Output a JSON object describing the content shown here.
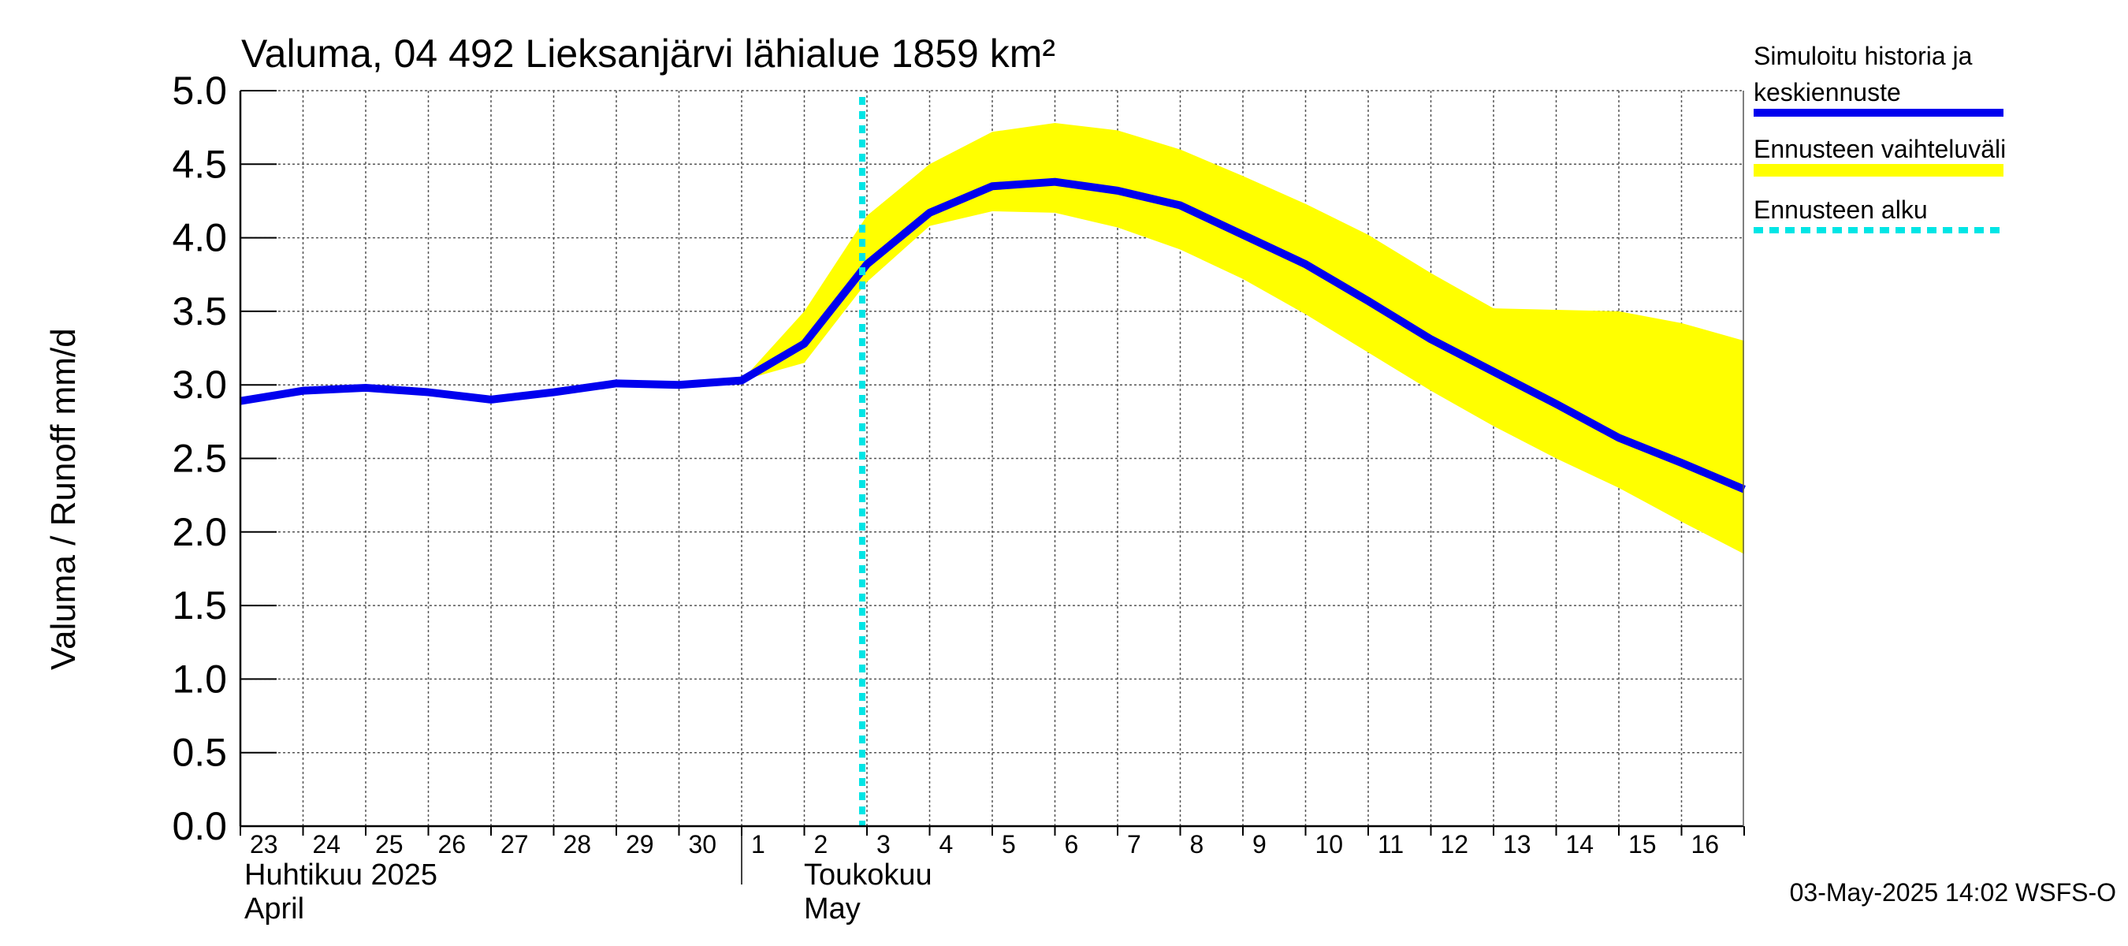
{
  "chart_data": {
    "type": "line",
    "title": "Valuma, 04 492 Lieksanjärvi lähialue 1859 km²",
    "ylabel": "Valuma / Runoff    mm/d",
    "ylim": [
      0,
      5
    ],
    "yticks": [
      "0.0",
      "0.5",
      "1.0",
      "1.5",
      "2.0",
      "2.5",
      "3.0",
      "3.5",
      "4.0",
      "4.5",
      "5.0"
    ],
    "x_tick_labels": [
      "23",
      "24",
      "25",
      "26",
      "27",
      "28",
      "29",
      "30",
      "1",
      "2",
      "3",
      "4",
      "5",
      "6",
      "7",
      "8",
      "9",
      "10",
      "11",
      "12",
      "13",
      "14",
      "15",
      "16"
    ],
    "month_labels": {
      "april_fi": "Huhtikuu  2025",
      "april_en": "April",
      "may_fi": "Toukokuu",
      "may_en": "May"
    },
    "grid": true,
    "legend_position": "right",
    "series": [
      {
        "name": "Simuloitu historia ja keskiennuste",
        "color": "#0000ee",
        "x": [
          "2025-04-23",
          "2025-04-24",
          "2025-04-25",
          "2025-04-26",
          "2025-04-27",
          "2025-04-28",
          "2025-04-29",
          "2025-04-30",
          "2025-05-01",
          "2025-05-02",
          "2025-05-03",
          "2025-05-04",
          "2025-05-05",
          "2025-05-06",
          "2025-05-07",
          "2025-05-08",
          "2025-05-09",
          "2025-05-10",
          "2025-05-11",
          "2025-05-12",
          "2025-05-13",
          "2025-05-14",
          "2025-05-15",
          "2025-05-16",
          "2025-05-17"
        ],
        "values": [
          2.89,
          2.96,
          2.98,
          2.95,
          2.9,
          2.95,
          3.01,
          3.0,
          3.03,
          3.28,
          3.82,
          4.17,
          4.35,
          4.38,
          4.32,
          4.22,
          4.02,
          3.82,
          3.57,
          3.31,
          3.09,
          2.87,
          2.64,
          2.47,
          2.29
        ]
      },
      {
        "name": "Ennusteen vaihteluväli",
        "color": "#ffff00",
        "x": [
          "2025-05-01",
          "2025-05-02",
          "2025-05-03",
          "2025-05-04",
          "2025-05-05",
          "2025-05-06",
          "2025-05-07",
          "2025-05-08",
          "2025-05-09",
          "2025-05-10",
          "2025-05-11",
          "2025-05-12",
          "2025-05-13",
          "2025-05-14",
          "2025-05-15",
          "2025-05-16",
          "2025-05-17"
        ],
        "upper": [
          3.03,
          3.5,
          4.15,
          4.5,
          4.72,
          4.78,
          4.73,
          4.6,
          4.42,
          4.23,
          4.02,
          3.76,
          3.52,
          3.51,
          3.5,
          3.42,
          3.3
        ],
        "lower": [
          3.03,
          3.15,
          3.7,
          4.08,
          4.18,
          4.17,
          4.07,
          3.92,
          3.72,
          3.48,
          3.22,
          2.96,
          2.72,
          2.5,
          2.3,
          2.07,
          1.85
        ]
      },
      {
        "name": "Ennusteen alku",
        "color": "#00e5e5",
        "x": [
          "2025-05-03",
          "2025-05-03"
        ],
        "values": [
          0,
          5
        ]
      }
    ]
  },
  "legend": {
    "items": [
      {
        "line1": "Simuloitu historia ja",
        "line2": "keskiennuste",
        "color": "#0000ee"
      },
      {
        "line1": "Ennusteen vaihteluväli",
        "line2": "",
        "color": "#ffff00"
      },
      {
        "line1": "Ennusteen alku",
        "line2": "",
        "color": "#00e5e5"
      }
    ]
  },
  "footer": {
    "timestamp": "03-May-2025 14:02 WSFS-O"
  }
}
